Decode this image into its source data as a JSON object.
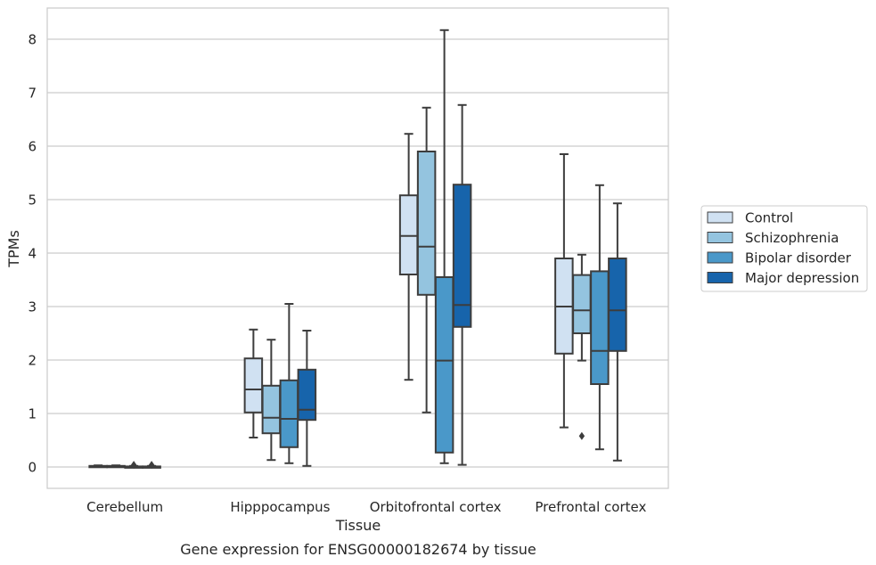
{
  "chart_data": {
    "type": "box",
    "xlabel": "Tissue",
    "ylabel": "TPMs",
    "caption": "Gene expression for ENSG00000182674 by tissue",
    "categories": [
      "Cerebellum",
      "Hipppocampus",
      "Orbitofrontal cortex",
      "Prefrontal cortex"
    ],
    "ylim": [
      -0.4,
      8.58
    ],
    "yticks": [
      0,
      1,
      2,
      3,
      4,
      5,
      6,
      7,
      8
    ],
    "grid": true,
    "legend_position": "right",
    "series": [
      {
        "name": "Control",
        "color": "#d0e1f2",
        "boxes": [
          {
            "min": 0.0,
            "q1": 0.0,
            "median": 0.0,
            "q3": 0.02,
            "max": 0.03,
            "outliers": []
          },
          {
            "min": 0.55,
            "q1": 1.02,
            "median": 1.45,
            "q3": 2.03,
            "max": 2.57,
            "outliers": []
          },
          {
            "min": 1.63,
            "q1": 3.6,
            "median": 4.32,
            "q3": 5.08,
            "max": 6.23,
            "outliers": []
          },
          {
            "min": 0.74,
            "q1": 2.12,
            "median": 3.0,
            "q3": 3.9,
            "max": 5.85,
            "outliers": []
          }
        ]
      },
      {
        "name": "Schizophrenia",
        "color": "#94c4df",
        "boxes": [
          {
            "min": 0.0,
            "q1": 0.0,
            "median": 0.01,
            "q3": 0.02,
            "max": 0.03,
            "outliers": []
          },
          {
            "min": 0.13,
            "q1": 0.63,
            "median": 0.92,
            "q3": 1.52,
            "max": 2.38,
            "outliers": []
          },
          {
            "min": 1.02,
            "q1": 3.22,
            "median": 4.12,
            "q3": 5.9,
            "max": 6.72,
            "outliers": []
          },
          {
            "min": 1.99,
            "q1": 2.5,
            "median": 2.93,
            "q3": 3.59,
            "max": 3.97,
            "outliers": [
              0.58
            ]
          }
        ]
      },
      {
        "name": "Bipolar disorder",
        "color": "#4a98c9",
        "boxes": [
          {
            "min": 0.0,
            "q1": 0.0,
            "median": 0.0,
            "q3": 0.01,
            "max": 0.02,
            "outliers": [
              0.04
            ]
          },
          {
            "min": 0.07,
            "q1": 0.37,
            "median": 0.9,
            "q3": 1.62,
            "max": 3.05,
            "outliers": []
          },
          {
            "min": 0.07,
            "q1": 0.27,
            "median": 1.99,
            "q3": 3.55,
            "max": 8.17,
            "outliers": []
          },
          {
            "min": 0.33,
            "q1": 1.55,
            "median": 2.17,
            "q3": 3.66,
            "max": 5.27,
            "outliers": []
          }
        ]
      },
      {
        "name": "Major depression",
        "color": "#1764ab",
        "boxes": [
          {
            "min": 0.0,
            "q1": 0.0,
            "median": 0.0,
            "q3": 0.01,
            "max": 0.02,
            "outliers": [
              0.04
            ]
          },
          {
            "min": 0.02,
            "q1": 0.88,
            "median": 1.07,
            "q3": 1.82,
            "max": 2.55,
            "outliers": []
          },
          {
            "min": 0.04,
            "q1": 2.62,
            "median": 3.03,
            "q3": 5.28,
            "max": 6.77,
            "outliers": []
          },
          {
            "min": 0.12,
            "q1": 2.17,
            "median": 2.93,
            "q3": 3.9,
            "max": 4.93,
            "outliers": []
          }
        ]
      }
    ]
  }
}
